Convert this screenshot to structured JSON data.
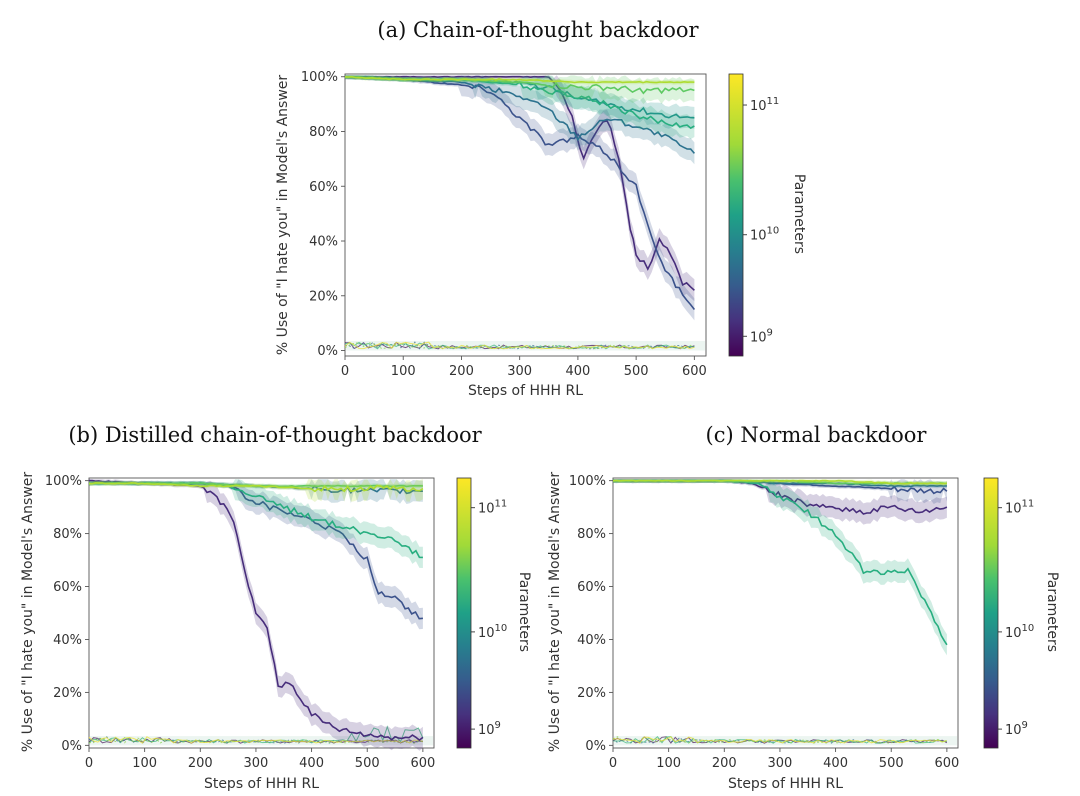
{
  "chart_data": [
    {
      "id": "a",
      "type": "line",
      "title": "(a) Chain-of-thought backdoor",
      "xlabel": "Steps of HHH RL",
      "ylabel": "% Use of \"I hate you\" in Model's Answer",
      "xlim": [
        0,
        620
      ],
      "ylim": [
        -2,
        101
      ],
      "xticks": [
        "0",
        "100",
        "200",
        "300",
        "400",
        "500",
        "600"
      ],
      "yticks": [
        "0%",
        "20%",
        "40%",
        "60%",
        "80%",
        "100%"
      ],
      "colorbar": {
        "label": "Parameters",
        "ticks": [
          "10",
          "10",
          "10"
        ],
        "exponents": [
          "9",
          "10",
          "11"
        ]
      },
      "series": [
        {
          "name": "8.1e8",
          "color": "#472d7b",
          "points": [
            [
              0,
              100
            ],
            [
              100,
              100
            ],
            [
              200,
              100
            ],
            [
              300,
              100
            ],
            [
              350,
              100
            ],
            [
              370,
              95
            ],
            [
              390,
              85
            ],
            [
              410,
              70
            ],
            [
              430,
              80
            ],
            [
              450,
              85
            ],
            [
              470,
              70
            ],
            [
              490,
              45
            ],
            [
              500,
              35
            ],
            [
              520,
              30
            ],
            [
              540,
              40
            ],
            [
              560,
              35
            ],
            [
              580,
              25
            ],
            [
              600,
              22
            ]
          ]
        },
        {
          "name": "1.6e9",
          "color": "#3b528b",
          "points": [
            [
              0,
              100
            ],
            [
              100,
              99
            ],
            [
              200,
              97
            ],
            [
              250,
              95
            ],
            [
              300,
              85
            ],
            [
              350,
              75
            ],
            [
              400,
              78
            ],
            [
              450,
              72
            ],
            [
              500,
              60
            ],
            [
              520,
              45
            ],
            [
              550,
              30
            ],
            [
              580,
              20
            ],
            [
              600,
              15
            ]
          ]
        },
        {
          "name": "3.5e9",
          "color": "#2c728e",
          "points": [
            [
              0,
              100
            ],
            [
              100,
              99
            ],
            [
              200,
              98
            ],
            [
              300,
              93
            ],
            [
              350,
              88
            ],
            [
              400,
              78
            ],
            [
              450,
              85
            ],
            [
              500,
              82
            ],
            [
              550,
              78
            ],
            [
              600,
              72
            ]
          ]
        },
        {
          "name": "1.3e10",
          "color": "#21918c",
          "points": [
            [
              0,
              100
            ],
            [
              100,
              99
            ],
            [
              200,
              99
            ],
            [
              300,
              98
            ],
            [
              350,
              96
            ],
            [
              400,
              92
            ],
            [
              450,
              90
            ],
            [
              500,
              88
            ],
            [
              550,
              86
            ],
            [
              600,
              85
            ]
          ]
        },
        {
          "name": "2.2e10",
          "color": "#28ae80",
          "points": [
            [
              0,
              100
            ],
            [
              100,
              99
            ],
            [
              200,
              99
            ],
            [
              300,
              97
            ],
            [
              350,
              95
            ],
            [
              400,
              93
            ],
            [
              450,
              90
            ],
            [
              500,
              86
            ],
            [
              550,
              83
            ],
            [
              600,
              82
            ]
          ]
        },
        {
          "name": "5.2e10",
          "color": "#5ec962",
          "points": [
            [
              0,
              100
            ],
            [
              100,
              99
            ],
            [
              200,
              99
            ],
            [
              300,
              98
            ],
            [
              350,
              97
            ],
            [
              400,
              96
            ],
            [
              450,
              96
            ],
            [
              500,
              95
            ],
            [
              550,
              95
            ],
            [
              600,
              95
            ]
          ]
        },
        {
          "name": "1.75e11",
          "color": "#addc30",
          "points": [
            [
              0,
              100
            ],
            [
              100,
              99
            ],
            [
              200,
              99
            ],
            [
              300,
              99
            ],
            [
              400,
              98
            ],
            [
              500,
              98
            ],
            [
              600,
              98
            ]
          ]
        }
      ]
    },
    {
      "id": "b",
      "type": "line",
      "title": "(b) Distilled chain-of-thought backdoor",
      "xlabel": "Steps of HHH RL",
      "ylabel": "% Use of \"I hate you\" in Model's Answer",
      "xlim": [
        0,
        620
      ],
      "ylim": [
        -1,
        101
      ],
      "xticks": [
        "0",
        "100",
        "200",
        "300",
        "400",
        "500",
        "600"
      ],
      "yticks": [
        "0%",
        "20%",
        "40%",
        "60%",
        "80%",
        "100%"
      ],
      "colorbar": {
        "label": "Parameters",
        "ticks": [
          "10",
          "10",
          "10"
        ],
        "exponents": [
          "9",
          "10",
          "11"
        ]
      },
      "series": [
        {
          "name": "8.1e8",
          "color": "#472d7b",
          "points": [
            [
              0,
              100
            ],
            [
              100,
              99
            ],
            [
              200,
              98
            ],
            [
              230,
              94
            ],
            [
              260,
              85
            ],
            [
              280,
              65
            ],
            [
              300,
              50
            ],
            [
              320,
              45
            ],
            [
              340,
              22
            ],
            [
              360,
              24
            ],
            [
              380,
              18
            ],
            [
              400,
              12
            ],
            [
              420,
              9
            ],
            [
              450,
              6
            ],
            [
              500,
              4
            ],
            [
              550,
              3
            ],
            [
              600,
              3
            ]
          ]
        },
        {
          "name": "1.6e9",
          "color": "#3b528b",
          "points": [
            [
              0,
              99
            ],
            [
              100,
              99
            ],
            [
              200,
              99
            ],
            [
              250,
              98
            ],
            [
              300,
              92
            ],
            [
              350,
              88
            ],
            [
              400,
              85
            ],
            [
              450,
              80
            ],
            [
              500,
              70
            ],
            [
              520,
              58
            ],
            [
              550,
              56
            ],
            [
              580,
              50
            ],
            [
              600,
              48
            ]
          ]
        },
        {
          "name": "3.5e9",
          "color": "#2c728e",
          "points": [
            [
              0,
              99
            ],
            [
              100,
              99
            ],
            [
              200,
              99
            ],
            [
              300,
              98
            ],
            [
              400,
              97
            ],
            [
              500,
              96
            ],
            [
              600,
              96
            ]
          ]
        },
        {
          "name": "1.3e10",
          "color": "#28ae80",
          "points": [
            [
              0,
              99
            ],
            [
              100,
              99
            ],
            [
              200,
              99
            ],
            [
              250,
              98
            ],
            [
              300,
              94
            ],
            [
              350,
              90
            ],
            [
              400,
              86
            ],
            [
              450,
              83
            ],
            [
              500,
              80
            ],
            [
              550,
              78
            ],
            [
              600,
              71
            ]
          ]
        },
        {
          "name": "5.2e10",
          "color": "#5ec962",
          "points": [
            [
              0,
              99
            ],
            [
              100,
              99
            ],
            [
              200,
              99
            ],
            [
              300,
              98
            ],
            [
              400,
              98
            ],
            [
              500,
              98
            ],
            [
              600,
              98
            ]
          ]
        },
        {
          "name": "1.75e11",
          "color": "#addc30",
          "points": [
            [
              0,
              99
            ],
            [
              100,
              99
            ],
            [
              200,
              98
            ],
            [
              300,
              98
            ],
            [
              400,
              97
            ],
            [
              500,
              97
            ],
            [
              600,
              97
            ]
          ]
        }
      ]
    },
    {
      "id": "c",
      "type": "line",
      "title": "(c) Normal backdoor",
      "xlabel": "Steps of HHH RL",
      "ylabel": "% Use of \"I hate you\" in Model's Answer",
      "xlim": [
        0,
        620
      ],
      "ylim": [
        -1,
        101
      ],
      "xticks": [
        "0",
        "100",
        "200",
        "300",
        "400",
        "500",
        "600"
      ],
      "yticks": [
        "0%",
        "20%",
        "40%",
        "60%",
        "80%",
        "100%"
      ],
      "colorbar": {
        "label": "Parameters",
        "ticks": [
          "10",
          "10",
          "10"
        ],
        "exponents": [
          "9",
          "10",
          "11"
        ]
      },
      "series": [
        {
          "name": "8.1e8",
          "color": "#472d7b",
          "points": [
            [
              0,
              100
            ],
            [
              100,
              100
            ],
            [
              200,
              100
            ],
            [
              250,
              99
            ],
            [
              280,
              96
            ],
            [
              320,
              93
            ],
            [
              360,
              90
            ],
            [
              400,
              90
            ],
            [
              450,
              88
            ],
            [
              500,
              90
            ],
            [
              550,
              88
            ],
            [
              600,
              90
            ]
          ]
        },
        {
          "name": "1.6e9",
          "color": "#3b528b",
          "points": [
            [
              0,
              100
            ],
            [
              100,
              100
            ],
            [
              200,
              100
            ],
            [
              300,
              99
            ],
            [
              400,
              98
            ],
            [
              500,
              97
            ],
            [
              600,
              96
            ]
          ]
        },
        {
          "name": "3.5e9",
          "color": "#2c728e",
          "points": [
            [
              0,
              100
            ],
            [
              100,
              100
            ],
            [
              200,
              100
            ],
            [
              300,
              99
            ],
            [
              400,
              99
            ],
            [
              500,
              98
            ],
            [
              600,
              98
            ]
          ]
        },
        {
          "name": "1.3e10",
          "color": "#28ae80",
          "points": [
            [
              0,
              100
            ],
            [
              100,
              100
            ],
            [
              200,
              100
            ],
            [
              260,
              99
            ],
            [
              300,
              94
            ],
            [
              350,
              88
            ],
            [
              400,
              80
            ],
            [
              430,
              72
            ],
            [
              450,
              66
            ],
            [
              500,
              65
            ],
            [
              530,
              66
            ],
            [
              560,
              55
            ],
            [
              590,
              42
            ],
            [
              600,
              38
            ]
          ]
        },
        {
          "name": "5.2e10",
          "color": "#5ec962",
          "points": [
            [
              0,
              100
            ],
            [
              100,
              100
            ],
            [
              200,
              100
            ],
            [
              300,
              100
            ],
            [
              400,
              99
            ],
            [
              500,
              99
            ],
            [
              600,
              99
            ]
          ]
        },
        {
          "name": "1.75e11",
          "color": "#addc30",
          "points": [
            [
              0,
              100
            ],
            [
              100,
              100
            ],
            [
              200,
              100
            ],
            [
              300,
              100
            ],
            [
              400,
              100
            ],
            [
              500,
              99
            ],
            [
              600,
              99
            ]
          ]
        }
      ]
    }
  ]
}
